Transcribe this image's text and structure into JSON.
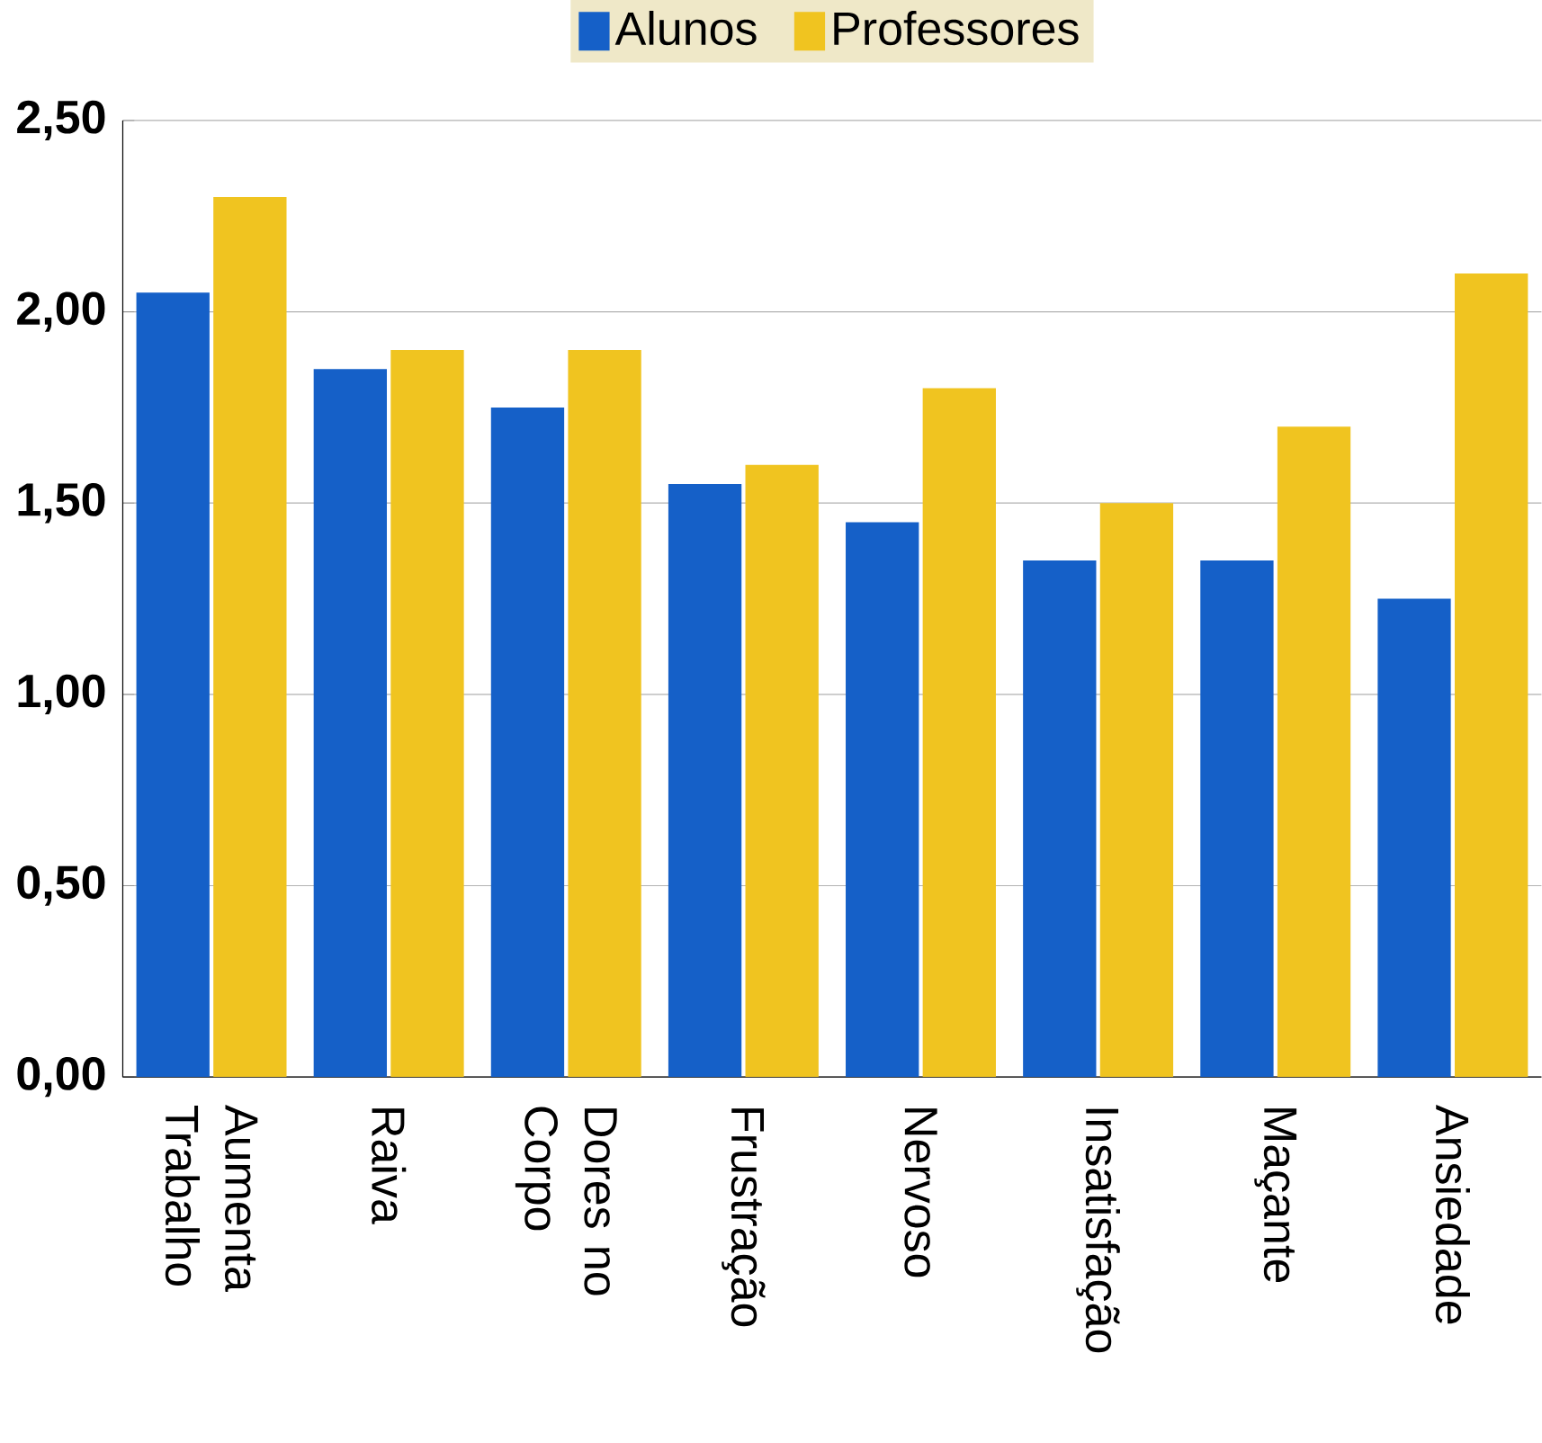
{
  "chart_data": {
    "type": "bar",
    "categories": [
      "Aumenta Trabalho",
      "Raiva",
      "Dores no Corpo",
      "Frustração",
      "Nervoso",
      "Insatisfação",
      "Maçante",
      "Ansiedade"
    ],
    "series": [
      {
        "name": "Alunos",
        "color": "#1560c8",
        "values": [
          2.05,
          1.85,
          1.75,
          1.55,
          1.45,
          1.35,
          1.35,
          1.25
        ]
      },
      {
        "name": "Professores",
        "color": "#f0c420",
        "values": [
          2.3,
          1.9,
          1.9,
          1.6,
          1.8,
          1.5,
          1.7,
          2.1
        ]
      }
    ],
    "ylim": [
      0,
      2.5
    ],
    "yticks": [
      {
        "value": 0,
        "label": "0,00"
      },
      {
        "value": 0.5,
        "label": "0,50"
      },
      {
        "value": 1,
        "label": "1,00"
      },
      {
        "value": 1.5,
        "label": "1,50"
      },
      {
        "value": 2,
        "label": "2,00"
      },
      {
        "value": 2.5,
        "label": "2,50"
      }
    ],
    "grid": "y",
    "legend": "top"
  }
}
